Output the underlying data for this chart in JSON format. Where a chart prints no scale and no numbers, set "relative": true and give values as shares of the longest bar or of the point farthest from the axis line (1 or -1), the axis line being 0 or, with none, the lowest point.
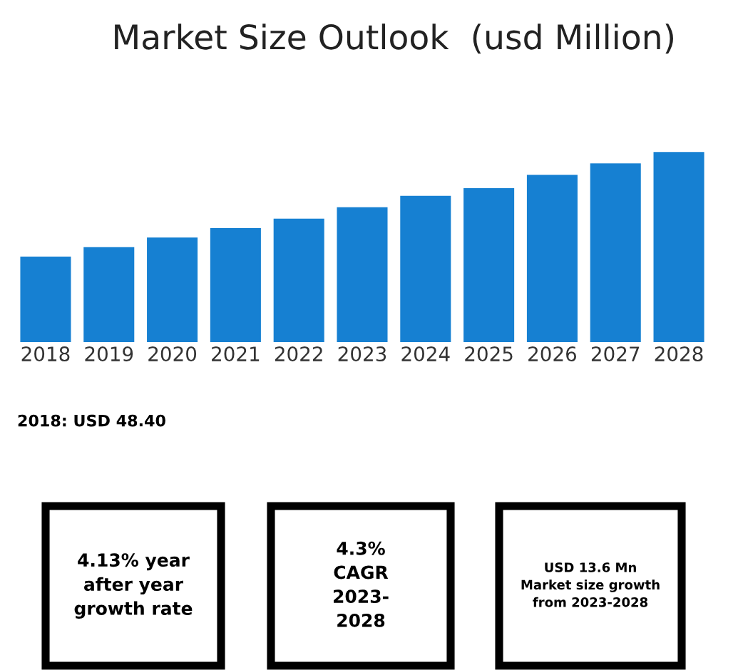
{
  "chart_data": {
    "type": "bar",
    "title": "Market Size Outlook  (usd Million)",
    "relative": true,
    "categories": [
      "2018",
      "2019",
      "2020",
      "2021",
      "2022",
      "2023",
      "2024",
      "2025",
      "2026",
      "2027",
      "2028"
    ],
    "values": [
      0.45,
      0.5,
      0.55,
      0.6,
      0.65,
      0.71,
      0.77,
      0.81,
      0.88,
      0.94,
      1
    ],
    "color": "#1680d2",
    "annotations": [
      "2018: USD 48.40",
      "4.13% year\nafter year\ngrowth rate",
      "4.3%\nCAGR\n2023-\n2028",
      "USD 13.6 Mn\nMarket size growth\nfrom 2023-2028"
    ]
  }
}
